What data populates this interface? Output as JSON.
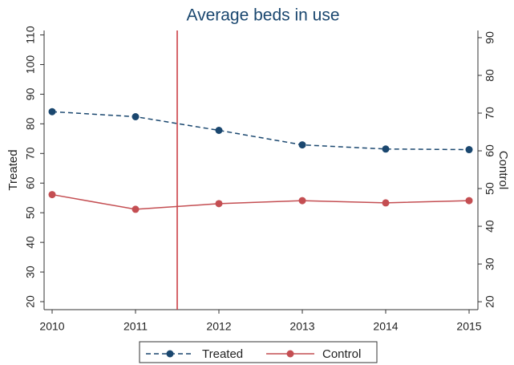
{
  "chart_data": {
    "type": "line",
    "title": "Average beds in use",
    "x": [
      2010,
      2011,
      2012,
      2013,
      2014,
      2015
    ],
    "xlim": [
      2010,
      2015
    ],
    "xticks": [
      2010,
      2011,
      2012,
      2013,
      2014,
      2015
    ],
    "ylabel": "Treated",
    "ylim": [
      17.3,
      111.5
    ],
    "yticks": [
      20,
      30,
      40,
      50,
      60,
      70,
      80,
      90,
      100,
      110
    ],
    "y2label": "Control",
    "y2lim": [
      17.9,
      91.9
    ],
    "y2ticks": [
      20,
      30,
      40,
      50,
      60,
      70,
      80,
      90
    ],
    "vline": 2011.5,
    "vline_color": "#c8343a",
    "series": [
      {
        "name": "Treated",
        "color": "#1a476f",
        "dash": true,
        "values": [
          84.1,
          82.4,
          77.8,
          72.9,
          71.5,
          71.3
        ]
      },
      {
        "name": "Control",
        "color": "#c44e52",
        "dash": false,
        "axis": "y2",
        "values": [
          48.4,
          44.5,
          46.0,
          46.8,
          46.2,
          46.8
        ]
      }
    ]
  }
}
